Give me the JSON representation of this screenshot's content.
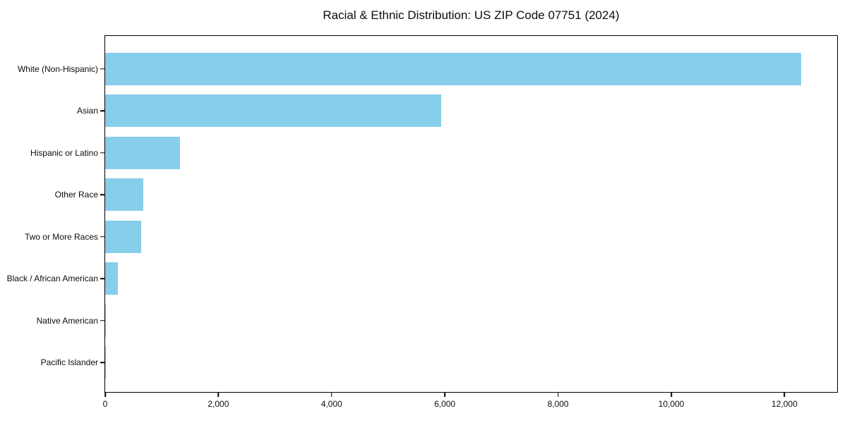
{
  "title": "Racial & Ethnic Distribution: US ZIP Code 07751 (2024)",
  "chart_data": {
    "type": "bar",
    "orientation": "horizontal",
    "title": "Racial & Ethnic Distribution: US ZIP Code 07751 (2024)",
    "categories": [
      "White (Non-Hispanic)",
      "Asian",
      "Hispanic or Latino",
      "Other Race",
      "Two or More Races",
      "Black / African American",
      "Native American",
      "Pacific Islander"
    ],
    "values": [
      12300,
      5940,
      1320,
      670,
      635,
      225,
      10,
      5
    ],
    "xlabel": "",
    "ylabel": "",
    "xlim": [
      0,
      12930
    ],
    "xticks": [
      0,
      2000,
      4000,
      6000,
      8000,
      10000,
      12000
    ],
    "xtick_labels": [
      "0",
      "2,000",
      "4,000",
      "6,000",
      "8,000",
      "10,000",
      "12,000"
    ],
    "bar_color": "#87CEEB",
    "background_color": "#FFFFFF",
    "grid": false,
    "legend": false
  }
}
